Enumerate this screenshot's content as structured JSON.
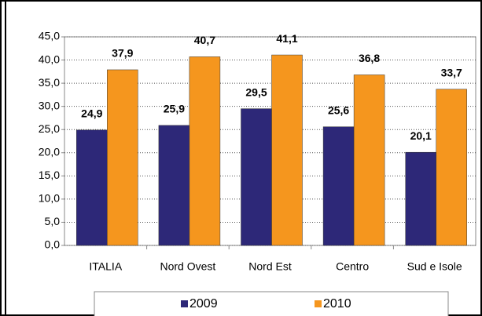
{
  "chart_data": {
    "type": "bar",
    "categories": [
      "ITALIA",
      "Nord Ovest",
      "Nord Est",
      "Centro",
      "Sud e Isole"
    ],
    "series": [
      {
        "name": "2009",
        "color": "#2d2878",
        "values": [
          24.9,
          25.9,
          29.5,
          25.6,
          20.1
        ],
        "value_labels": [
          "24,9",
          "25,9",
          "29,5",
          "25,6",
          "20,1"
        ]
      },
      {
        "name": "2010",
        "color": "#f5961e",
        "values": [
          37.9,
          40.7,
          41.1,
          36.8,
          33.7
        ],
        "value_labels": [
          "37,9",
          "40,7",
          "41,1",
          "36,8",
          "33,7"
        ]
      }
    ],
    "ylim": [
      0,
      45
    ],
    "yticks": [
      {
        "value": 0,
        "label": "0,0"
      },
      {
        "value": 5,
        "label": "5,0"
      },
      {
        "value": 10,
        "label": "10,0"
      },
      {
        "value": 15,
        "label": "15,0"
      },
      {
        "value": 20,
        "label": "20,0"
      },
      {
        "value": 25,
        "label": "25,0"
      },
      {
        "value": 30,
        "label": "30,0"
      },
      {
        "value": 35,
        "label": "35,0"
      },
      {
        "value": 40,
        "label": "40,0"
      },
      {
        "value": 45,
        "label": "45,0"
      }
    ],
    "grid": true,
    "legend": "bottom"
  }
}
